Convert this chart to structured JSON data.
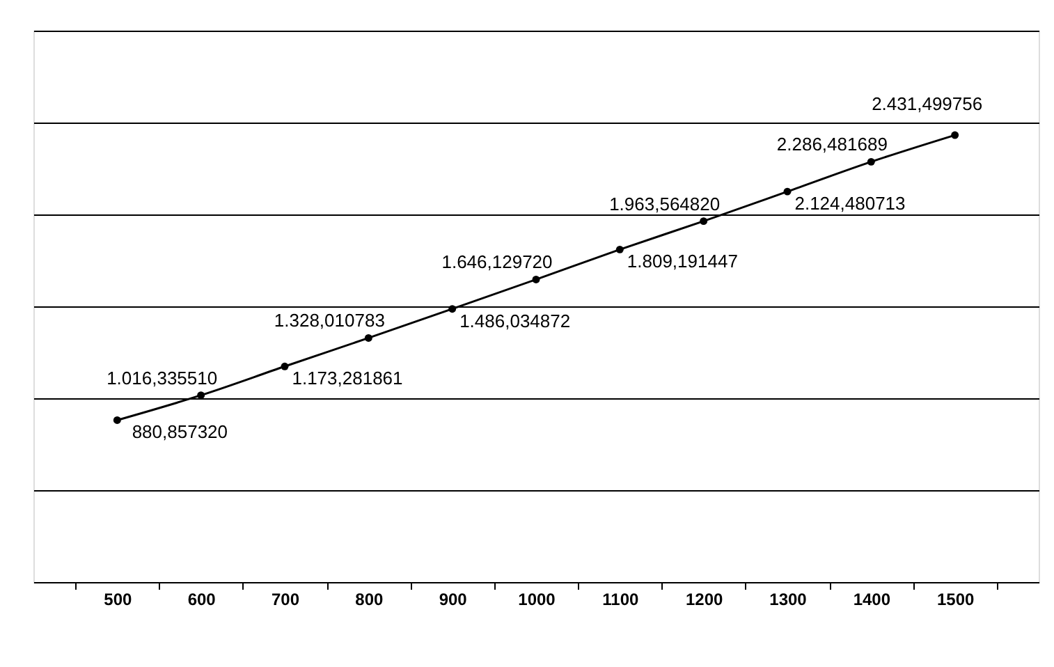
{
  "chart_data": {
    "type": "line",
    "categories": [
      "500",
      "600",
      "700",
      "800",
      "900",
      "1000",
      "1100",
      "1200",
      "1300",
      "1400",
      "1500"
    ],
    "series": [
      {
        "color": "#000000",
        "values": [
          880.85732,
          1016.33551,
          1173.281861,
          1328.010783,
          1486.034872,
          1646.12972,
          1809.191447,
          1963.56482,
          2124.480713,
          2286.481689,
          2431.499756
        ],
        "value_labels": [
          "880,857320",
          "1.016,335510",
          "1.173,281861",
          "1.328,010783",
          "1.486,034872",
          "1.646,129720",
          "1.809,191447",
          "1.963,564820",
          "2.124,480713",
          "2.286,481689",
          "2.431,499756"
        ]
      }
    ],
    "ylim": [
      0,
      3000
    ],
    "yticks": [
      {
        "value": 0,
        "label": null
      },
      {
        "value": 500,
        "label": null
      },
      {
        "value": 1000,
        "label": null
      },
      {
        "value": 1500,
        "label": null
      },
      {
        "value": 2000,
        "label": null
      },
      {
        "value": 2500,
        "label": null
      },
      {
        "value": 3000,
        "label": null
      }
    ],
    "tick_labels": "x",
    "grid": "y",
    "marker": "circle",
    "line_style": "solid"
  }
}
